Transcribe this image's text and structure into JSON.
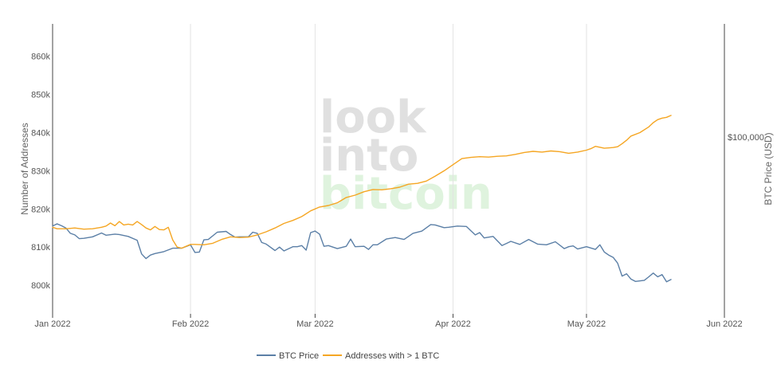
{
  "chart_data": {
    "type": "line",
    "watermark": {
      "line1": "look",
      "line2": "into",
      "line3": "bitcoin"
    },
    "y_left": {
      "label": "Number of Addresses",
      "ticks": [
        800000,
        810000,
        820000,
        830000,
        840000,
        850000,
        860000
      ],
      "tick_labels": [
        "800k",
        "810k",
        "820k",
        "830k",
        "840k",
        "850k",
        "860k"
      ],
      "range": [
        792500,
        868500
      ]
    },
    "y_right": {
      "label": "BTC Price (USD)",
      "ticks": [
        100000
      ],
      "tick_labels": [
        "$100,000"
      ]
    },
    "x_axis": {
      "start": "2022-01-01",
      "end": "2022-06-01",
      "ticks": [
        "2022-01-01",
        "2022-02-01",
        "2022-03-01",
        "2022-04-01",
        "2022-05-01",
        "2022-06-01"
      ],
      "tick_labels": [
        "Jan 2022",
        "Feb 2022",
        "Mar 2022",
        "Apr 2022",
        "May 2022",
        "Jun 2022"
      ]
    },
    "legend": {
      "placement": "bottom-center"
    },
    "series": [
      {
        "name": "BTC Price",
        "color": "#5b7fa6",
        "x": [
          "2022-01-01",
          "2022-01-02",
          "2022-01-03",
          "2022-01-04",
          "2022-01-05",
          "2022-01-06",
          "2022-01-07",
          "2022-01-08",
          "2022-01-10",
          "2022-01-12",
          "2022-01-13",
          "2022-01-15",
          "2022-01-16",
          "2022-01-18",
          "2022-01-20",
          "2022-01-21",
          "2022-01-22",
          "2022-01-23",
          "2022-01-24",
          "2022-01-26",
          "2022-01-28",
          "2022-01-30",
          "2022-02-01",
          "2022-02-02",
          "2022-02-03",
          "2022-02-04",
          "2022-02-05",
          "2022-02-07",
          "2022-02-09",
          "2022-02-10",
          "2022-02-11",
          "2022-02-12",
          "2022-02-14",
          "2022-02-15",
          "2022-02-16",
          "2022-02-17",
          "2022-02-18",
          "2022-02-20",
          "2022-02-21",
          "2022-02-22",
          "2022-02-24",
          "2022-02-25",
          "2022-02-26",
          "2022-02-27",
          "2022-02-28",
          "2022-03-01",
          "2022-03-02",
          "2022-03-03",
          "2022-03-04",
          "2022-03-06",
          "2022-03-08",
          "2022-03-09",
          "2022-03-10",
          "2022-03-12",
          "2022-03-13",
          "2022-03-14",
          "2022-03-15",
          "2022-03-17",
          "2022-03-19",
          "2022-03-21",
          "2022-03-23",
          "2022-03-25",
          "2022-03-27",
          "2022-03-28",
          "2022-03-30",
          "2022-03-31",
          "2022-04-02",
          "2022-04-04",
          "2022-04-05",
          "2022-04-06",
          "2022-04-07",
          "2022-04-08",
          "2022-04-10",
          "2022-04-12",
          "2022-04-14",
          "2022-04-16",
          "2022-04-18",
          "2022-04-20",
          "2022-04-22",
          "2022-04-24",
          "2022-04-26",
          "2022-04-27",
          "2022-04-28",
          "2022-04-29",
          "2022-05-01",
          "2022-05-03",
          "2022-05-04",
          "2022-05-05",
          "2022-05-06",
          "2022-05-07",
          "2022-05-08",
          "2022-05-09",
          "2022-05-10",
          "2022-05-11",
          "2022-05-12",
          "2022-05-14",
          "2022-05-15",
          "2022-05-16",
          "2022-05-17",
          "2022-05-18",
          "2022-05-19",
          "2022-05-20"
        ],
        "values": [
          815.5,
          816.1,
          815.6,
          815.0,
          813.6,
          813.2,
          812.2,
          812.3,
          812.7,
          813.7,
          813.1,
          813.4,
          813.3,
          812.8,
          811.8,
          808.2,
          807.0,
          807.9,
          808.3,
          808.8,
          809.7,
          809.7,
          810.6,
          808.6,
          808.7,
          811.9,
          812.0,
          813.9,
          814.1,
          813.3,
          812.6,
          812.7,
          812.7,
          813.9,
          813.6,
          811.2,
          810.8,
          809.1,
          810.0,
          809.0,
          810.1,
          810.1,
          810.4,
          809.2,
          813.8,
          814.2,
          813.4,
          810.2,
          810.4,
          809.6,
          810.2,
          812.1,
          810.1,
          810.2,
          809.4,
          810.6,
          810.6,
          812.1,
          812.5,
          812.0,
          813.6,
          814.2,
          815.9,
          815.8,
          815.1,
          815.2,
          815.5,
          815.4,
          814.3,
          813.2,
          813.8,
          812.4,
          812.8,
          810.4,
          811.5,
          810.7,
          812.0,
          810.8,
          810.6,
          811.4,
          809.6,
          810.1,
          810.3,
          809.5,
          810.1,
          809.4,
          810.6,
          808.7,
          807.9,
          807.3,
          805.8,
          802.4,
          803.0,
          801.6,
          801.0,
          801.3,
          802.2,
          803.2,
          802.2,
          802.8,
          800.9,
          801.5
        ]
      },
      {
        "name": "Addresses with > 1 BTC",
        "color": "#f5a623",
        "x": [
          "2022-01-01",
          "2022-01-02",
          "2022-01-04",
          "2022-01-06",
          "2022-01-08",
          "2022-01-10",
          "2022-01-12",
          "2022-01-13",
          "2022-01-14",
          "2022-01-15",
          "2022-01-16",
          "2022-01-17",
          "2022-01-18",
          "2022-01-19",
          "2022-01-20",
          "2022-01-21",
          "2022-01-22",
          "2022-01-23",
          "2022-01-24",
          "2022-01-25",
          "2022-01-26",
          "2022-01-27",
          "2022-01-28",
          "2022-01-29",
          "2022-01-30",
          "2022-01-31",
          "2022-02-01",
          "2022-02-02",
          "2022-02-04",
          "2022-02-06",
          "2022-02-08",
          "2022-02-10",
          "2022-02-12",
          "2022-02-14",
          "2022-02-16",
          "2022-02-18",
          "2022-02-20",
          "2022-02-22",
          "2022-02-24",
          "2022-02-26",
          "2022-02-28",
          "2022-03-02",
          "2022-03-04",
          "2022-03-06",
          "2022-03-08",
          "2022-03-10",
          "2022-03-12",
          "2022-03-14",
          "2022-03-16",
          "2022-03-18",
          "2022-03-20",
          "2022-03-22",
          "2022-03-24",
          "2022-03-26",
          "2022-03-28",
          "2022-03-30",
          "2022-04-01",
          "2022-04-03",
          "2022-04-05",
          "2022-04-07",
          "2022-04-09",
          "2022-04-11",
          "2022-04-13",
          "2022-04-15",
          "2022-04-17",
          "2022-04-19",
          "2022-04-21",
          "2022-04-23",
          "2022-04-25",
          "2022-04-27",
          "2022-04-29",
          "2022-05-01",
          "2022-05-02",
          "2022-05-03",
          "2022-05-05",
          "2022-05-07",
          "2022-05-08",
          "2022-05-09",
          "2022-05-10",
          "2022-05-11",
          "2022-05-13",
          "2022-05-15",
          "2022-05-16",
          "2022-05-17",
          "2022-05-18",
          "2022-05-19",
          "2022-05-20"
        ],
        "values": [
          815.2,
          814.8,
          814.8,
          815.0,
          814.7,
          814.8,
          815.2,
          815.5,
          816.3,
          815.6,
          816.7,
          815.8,
          816.0,
          815.8,
          816.7,
          815.9,
          815.0,
          814.5,
          815.4,
          814.6,
          814.5,
          815.2,
          811.9,
          810.0,
          809.7,
          810.2,
          810.7,
          810.7,
          810.6,
          811.0,
          812.0,
          812.7,
          812.5,
          812.6,
          813.2,
          814.0,
          815.0,
          816.2,
          817.0,
          818.0,
          819.5,
          820.5,
          820.9,
          821.6,
          823.0,
          823.6,
          824.5,
          825.1,
          825.0,
          825.3,
          825.7,
          826.5,
          826.7,
          827.3,
          828.6,
          830.0,
          831.6,
          833.2,
          833.5,
          833.7,
          833.6,
          833.8,
          833.9,
          834.3,
          834.8,
          835.1,
          834.9,
          835.2,
          835.0,
          834.6,
          834.9,
          835.4,
          835.8,
          836.4,
          835.9,
          836.1,
          836.3,
          837.1,
          838.0,
          839.1,
          840.0,
          841.5,
          842.6,
          843.4,
          843.8,
          844.0,
          844.5
        ]
      }
    ]
  }
}
